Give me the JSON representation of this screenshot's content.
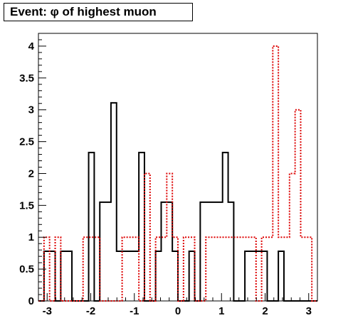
{
  "chart_data": {
    "type": "histogram",
    "title": "Event: φ of highest muon",
    "xlabel": "",
    "ylabel": "",
    "xlim": [
      -3.2,
      3.2
    ],
    "ylim": [
      0,
      4.2
    ],
    "x_ticks": [
      -3,
      -2,
      -1,
      0,
      1,
      2,
      3
    ],
    "x_tick_labels": [
      "-3",
      "-2",
      "-1",
      "0",
      "1",
      "2",
      "3"
    ],
    "y_ticks": [
      0,
      0.5,
      1,
      1.5,
      2,
      2.5,
      3,
      3.5,
      4
    ],
    "y_tick_labels": [
      "0",
      "0.5",
      "1",
      "1.5",
      "2",
      "2.5",
      "3",
      "3.5",
      "4"
    ],
    "grid": false,
    "bin_edges": [
      -3.2,
      -3.072,
      -2.944,
      -2.816,
      -2.688,
      -2.56,
      -2.432,
      -2.304,
      -2.176,
      -2.048,
      -1.92,
      -1.792,
      -1.664,
      -1.536,
      -1.408,
      -1.28,
      -1.152,
      -1.024,
      -0.896,
      -0.768,
      -0.64,
      -0.512,
      -0.384,
      -0.256,
      -0.128,
      0,
      0.128,
      0.256,
      0.384,
      0.512,
      0.64,
      0.768,
      0.896,
      1.024,
      1.152,
      1.28,
      1.408,
      1.536,
      1.664,
      1.792,
      1.92,
      2.048,
      2.176,
      2.304,
      2.432,
      2.56,
      2.688,
      2.816,
      2.944,
      3.072,
      3.2
    ],
    "series": [
      {
        "name": "",
        "color": "#000000",
        "line_style": "solid",
        "values": [
          0,
          0.78,
          0.78,
          0,
          0.78,
          0.78,
          0,
          0,
          0,
          2.33,
          0,
          1.55,
          1.55,
          3.11,
          0.78,
          0.78,
          0.78,
          0.78,
          2.33,
          0,
          0,
          0.78,
          1.55,
          1.55,
          0.78,
          0,
          0,
          0.78,
          0,
          1.55,
          1.55,
          1.55,
          1.55,
          2.33,
          1.55,
          0,
          0,
          0.78,
          0.78,
          0.78,
          0.78,
          0,
          0,
          0.78,
          0,
          0,
          0,
          0,
          0,
          0
        ]
      },
      {
        "name": "",
        "color": "#dd0000",
        "line_style": "dotted",
        "values": [
          0,
          1,
          0,
          1,
          0,
          0,
          0,
          0,
          1,
          1,
          1,
          0,
          0,
          0,
          0,
          1,
          1,
          1,
          0,
          2,
          0,
          1,
          1,
          2,
          1,
          0,
          1,
          1,
          0,
          0,
          1,
          1,
          1,
          1,
          1,
          1,
          1,
          1,
          1,
          0,
          1,
          1,
          4,
          1,
          1,
          2,
          3,
          1,
          1,
          0
        ]
      }
    ]
  }
}
